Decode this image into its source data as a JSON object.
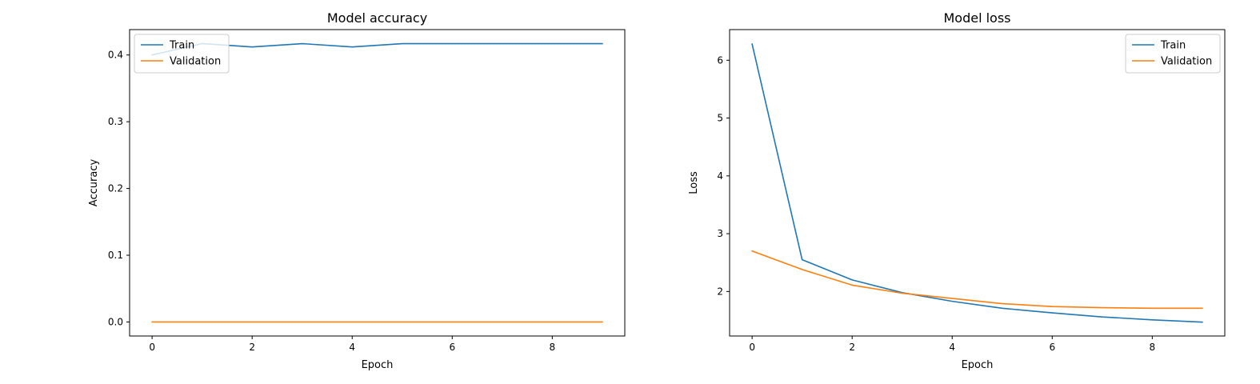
{
  "chart_data": [
    {
      "type": "line",
      "title": "Model accuracy",
      "xlabel": "Epoch",
      "ylabel": "Accuracy",
      "x": [
        0,
        1,
        2,
        3,
        4,
        5,
        6,
        7,
        8,
        9
      ],
      "xlim": [
        -0.45,
        9.45
      ],
      "ylim": [
        -0.021,
        0.438
      ],
      "xticks": [
        0,
        2,
        4,
        6,
        8
      ],
      "yticks": [
        0.0,
        0.1,
        0.2,
        0.3,
        0.4
      ],
      "ytick_format": 1,
      "grid": false,
      "legend": "upper left",
      "series": [
        {
          "name": "Train",
          "color": "#1f77b4",
          "values": [
            0.4,
            0.417,
            0.412,
            0.417,
            0.412,
            0.417,
            0.417,
            0.417,
            0.417,
            0.417
          ]
        },
        {
          "name": "Validation",
          "color": "#ff7f0e",
          "values": [
            0,
            0,
            0,
            0,
            0,
            0,
            0,
            0,
            0,
            0
          ]
        }
      ]
    },
    {
      "type": "line",
      "title": "Model loss",
      "xlabel": "Epoch",
      "ylabel": "Loss",
      "x": [
        0,
        1,
        2,
        3,
        4,
        5,
        6,
        7,
        8,
        9
      ],
      "xlim": [
        -0.45,
        9.45
      ],
      "ylim": [
        1.23,
        6.53
      ],
      "xticks": [
        0,
        2,
        4,
        6,
        8
      ],
      "yticks": [
        2,
        3,
        4,
        5,
        6
      ],
      "ytick_format": 0,
      "grid": false,
      "legend": "upper right",
      "series": [
        {
          "name": "Train",
          "color": "#1f77b4",
          "values": [
            6.28,
            2.55,
            2.2,
            1.98,
            1.83,
            1.71,
            1.63,
            1.56,
            1.51,
            1.47
          ]
        },
        {
          "name": "Validation",
          "color": "#ff7f0e",
          "values": [
            2.7,
            2.38,
            2.11,
            1.97,
            1.88,
            1.79,
            1.74,
            1.72,
            1.71,
            1.71
          ]
        }
      ]
    }
  ]
}
